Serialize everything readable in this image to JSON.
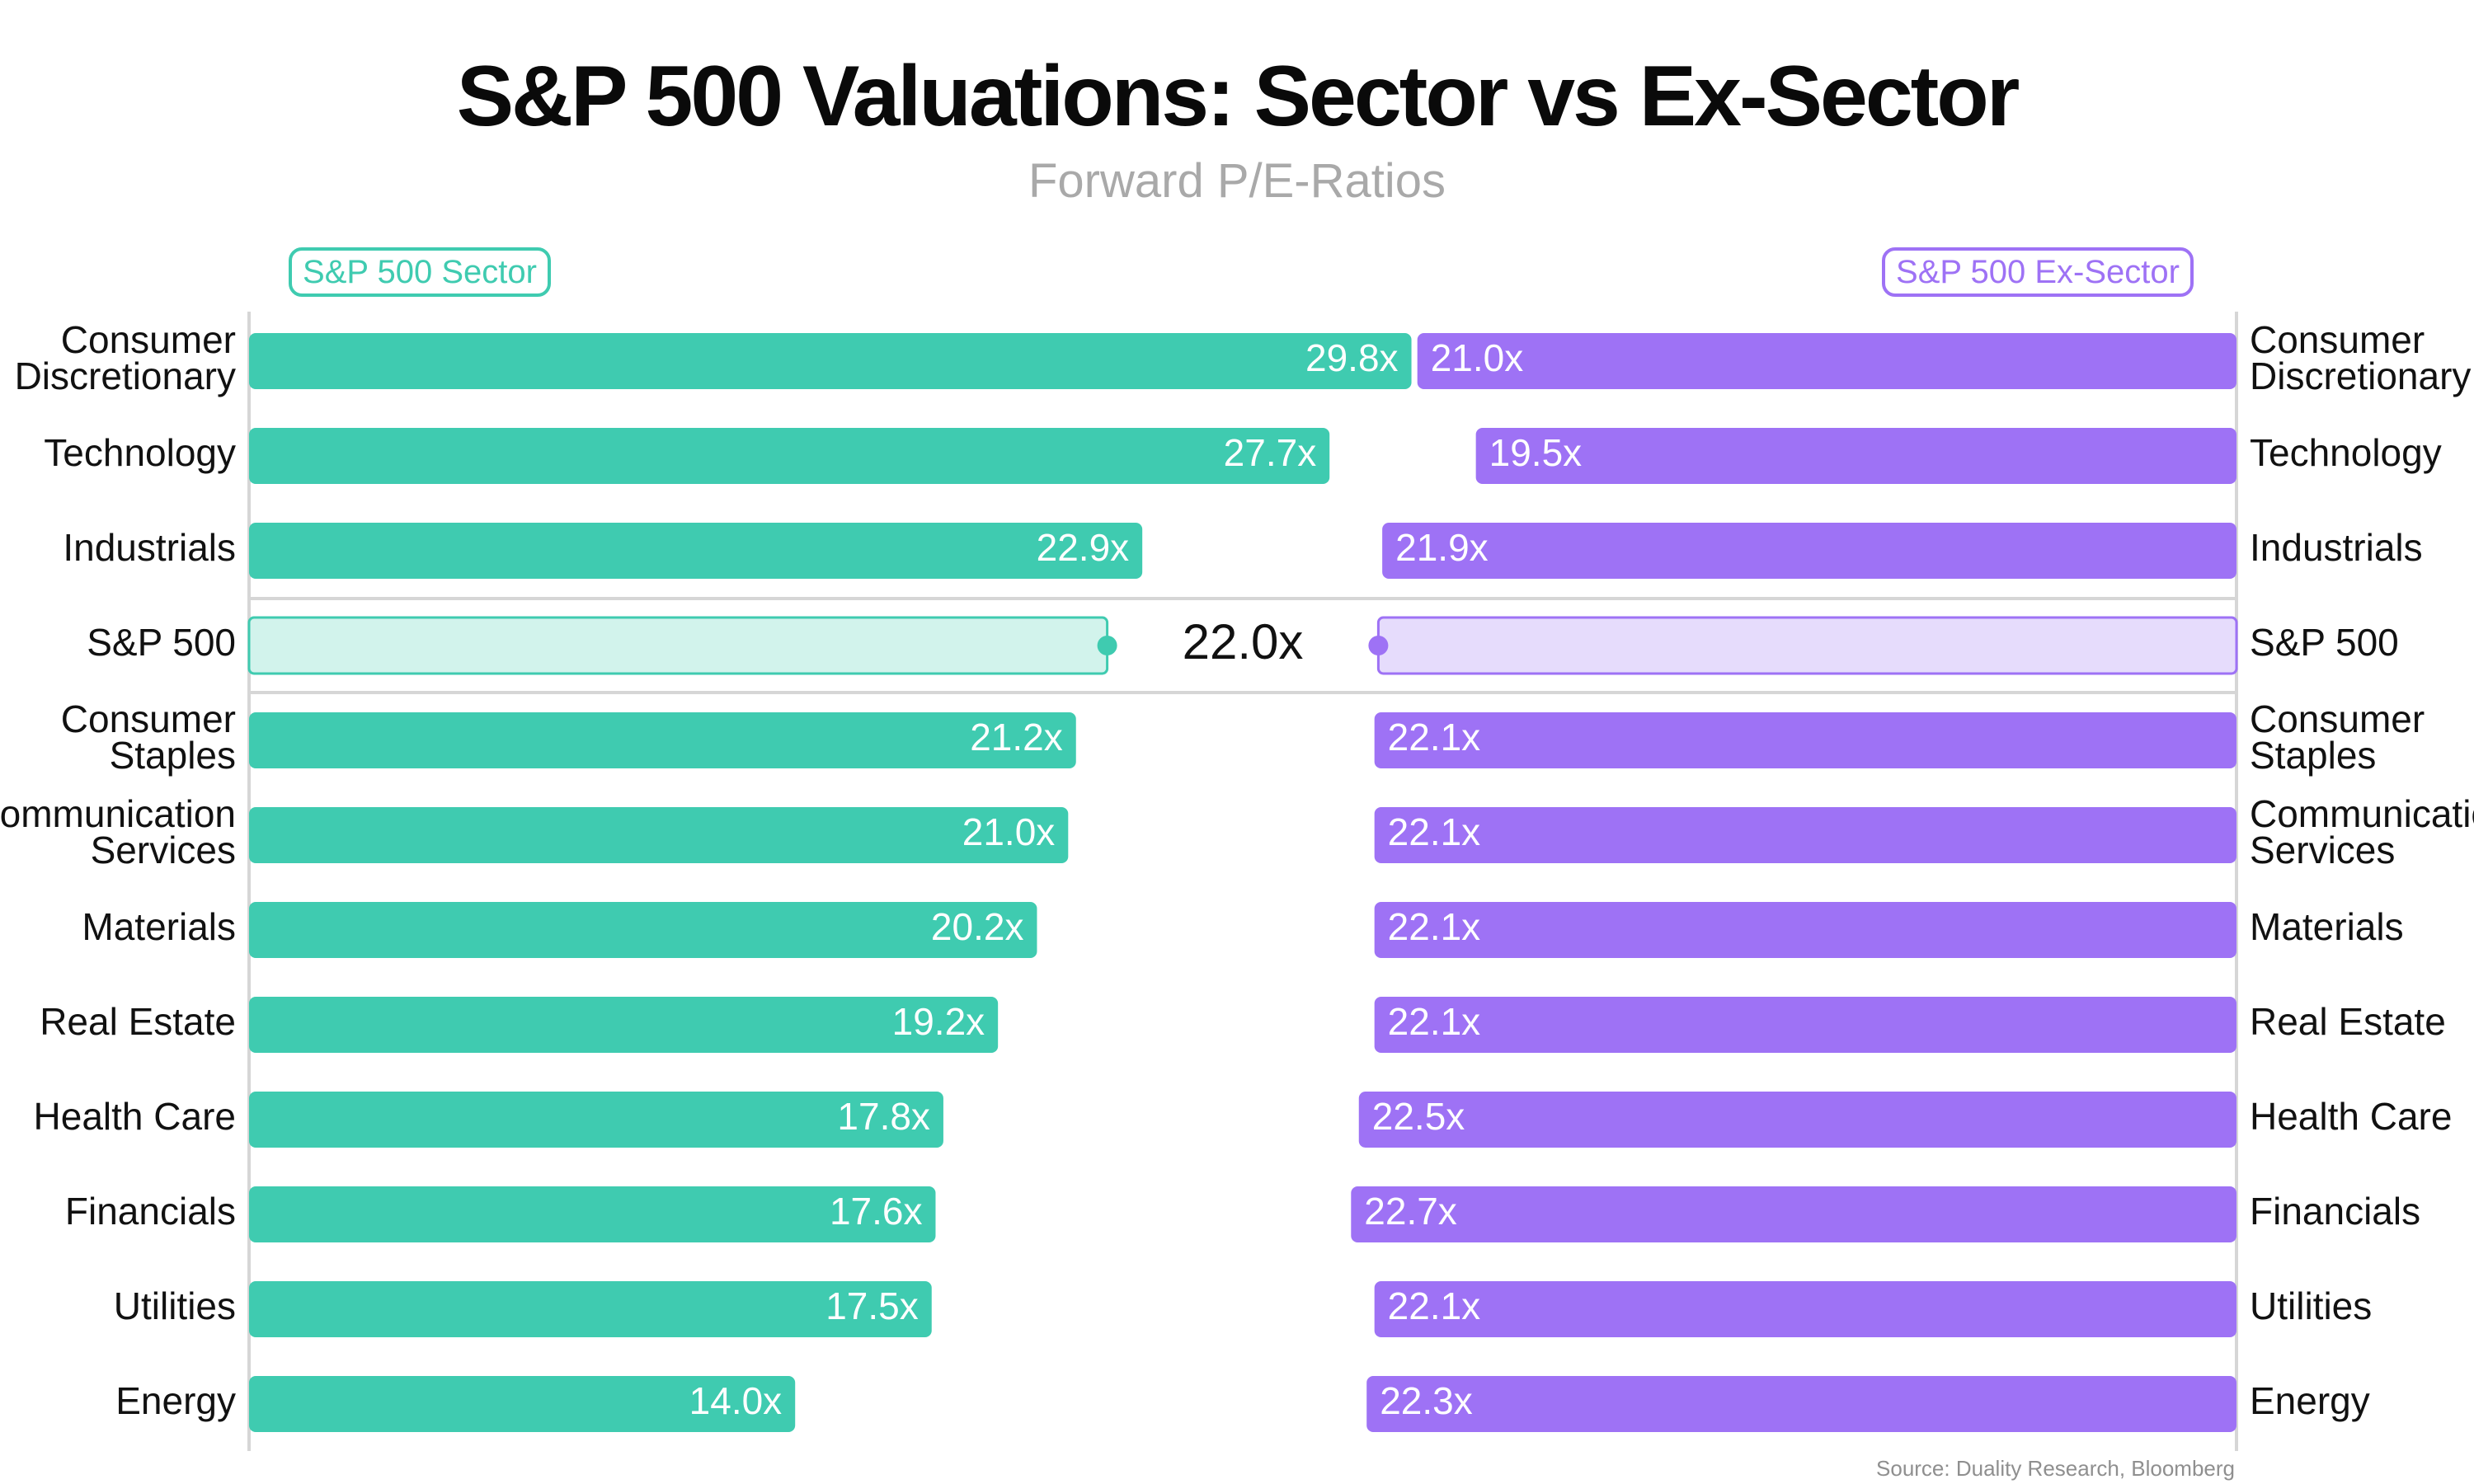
{
  "title": "S&P 500 Valuations: Sector vs Ex-Sector",
  "subtitle": "Forward P/E-Ratios",
  "source": "Source: Duality Research, Bloomberg",
  "colors": {
    "sector": "#3fcbb0",
    "ex_sector": "#9e72f5",
    "sector_light": "#d2f3ec",
    "ex_sector_light": "#e6dcfc",
    "axis": "#d6d6d6"
  },
  "chart_data": {
    "type": "bar",
    "layout": "diverging butterfly (horizontal bars)",
    "categories": [
      "Consumer\nDiscretionary",
      "Technology",
      "Industrials",
      "S&P 500",
      "Consumer\nStaples",
      "Communication\nServices",
      "Materials",
      "Real Estate",
      "Health Care",
      "Financials",
      "Utilities",
      "Energy"
    ],
    "series": [
      {
        "name": "S&P 500 Sector",
        "side": "left",
        "values": [
          29.8,
          27.7,
          22.9,
          22.0,
          21.2,
          21.0,
          20.2,
          19.2,
          17.8,
          17.6,
          17.5,
          14.0
        ]
      },
      {
        "name": "S&P 500 Ex-Sector",
        "side": "right",
        "values": [
          21.0,
          19.5,
          21.9,
          22.0,
          22.1,
          22.1,
          22.1,
          22.1,
          22.5,
          22.7,
          22.1,
          22.3
        ]
      }
    ],
    "value_suffix": "x",
    "benchmark_category": "S&P 500",
    "benchmark_label": "22.0x"
  }
}
